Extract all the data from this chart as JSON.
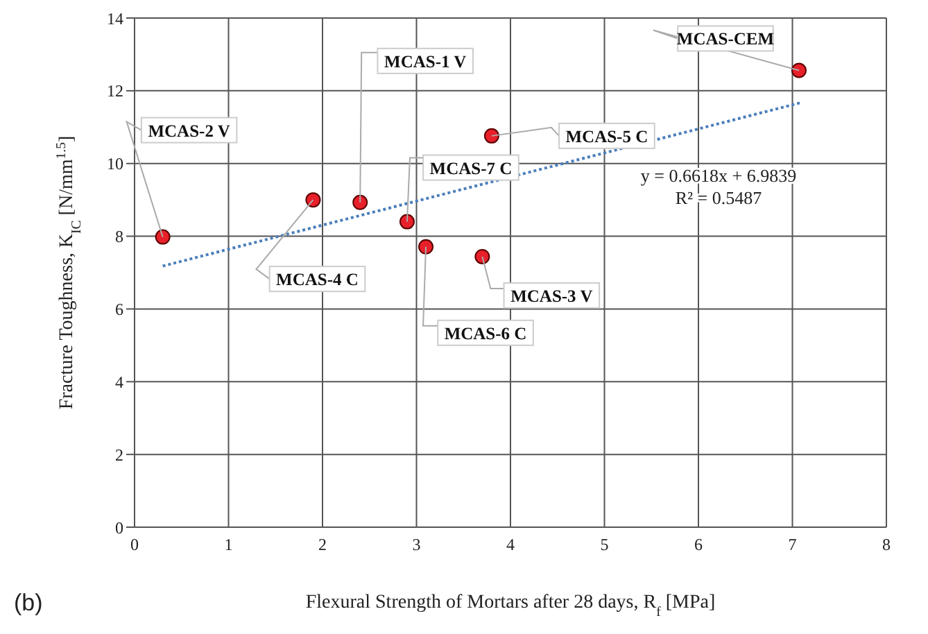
{
  "chart_data": {
    "type": "scatter",
    "xlabel": "Flexural Strength of Mortars after 28 days, R$_{f}$ [MPa]",
    "ylabel": "Fracture Toughness, K$_{IC}$ [N/mm$^{1.5}$]",
    "xlim": [
      0,
      8
    ],
    "xticks": [
      0,
      1,
      2,
      3,
      4,
      5,
      6,
      7,
      8
    ],
    "ylim": [
      0,
      14
    ],
    "yticks": [
      0,
      2,
      4,
      6,
      8,
      10,
      12,
      14
    ],
    "grid": true,
    "series": [
      {
        "marker": "circle",
        "color": "#e8202a",
        "x": [
          0.3,
          1.9,
          2.4,
          2.9,
          3.1,
          3.7,
          3.8,
          7.07
        ],
        "values": [
          7.98,
          9.0,
          8.93,
          8.4,
          7.71,
          7.44,
          10.76,
          12.56
        ]
      },
      {
        "type": "line",
        "color": "#4a7ebb",
        "line_style": "dotted",
        "x": [
          0.3,
          7.1
        ],
        "values": [
          7.18,
          11.68
        ]
      }
    ],
    "annotations": [
      {
        "text": "MCAS-2 V",
        "x": 0.3,
        "y": 7.98
      },
      {
        "text": "MCAS-4 C",
        "x": 1.9,
        "y": 9.0
      },
      {
        "text": "MCAS-1 V",
        "x": 2.4,
        "y": 8.93
      },
      {
        "text": "MCAS-7 C",
        "x": 2.9,
        "y": 8.4
      },
      {
        "text": "MCAS-6 C",
        "x": 3.1,
        "y": 7.71
      },
      {
        "text": "MCAS-3 V",
        "x": 3.7,
        "y": 7.44
      },
      {
        "text": "MCAS-5 C",
        "x": 3.8,
        "y": 10.76
      },
      {
        "text": "MCAS-CEM",
        "x": 7.07,
        "y": 12.56
      },
      "y = 0.6618x + 6.9839",
      "R² = 0.5487",
      "(b)"
    ]
  }
}
